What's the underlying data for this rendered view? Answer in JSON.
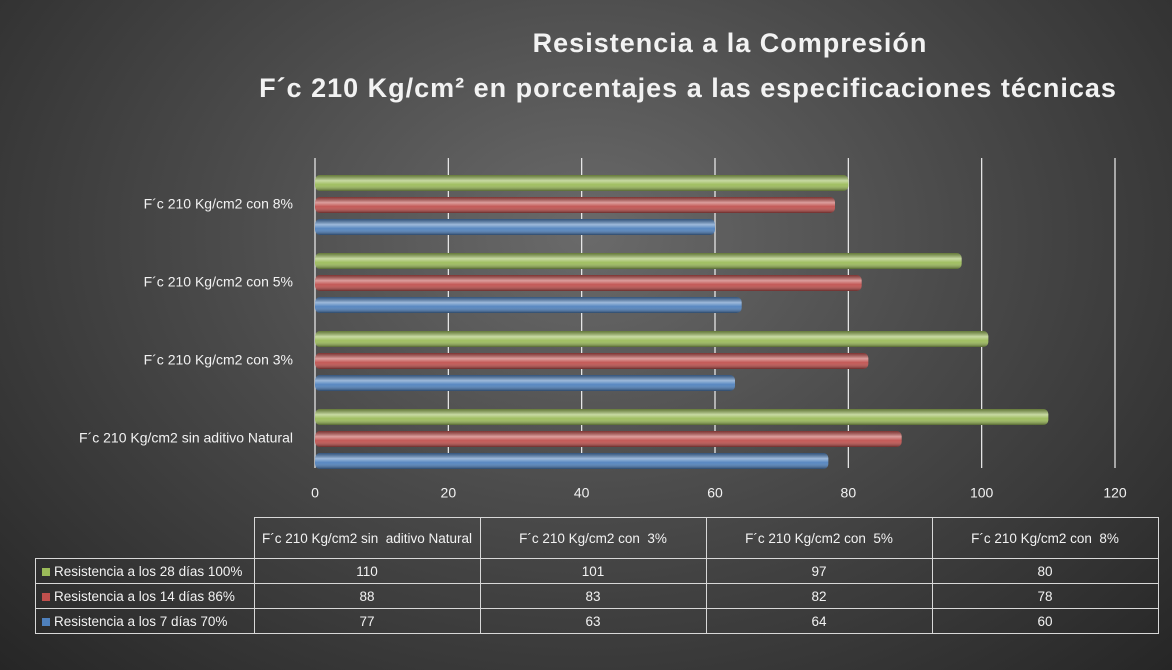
{
  "chart_data": {
    "type": "bar",
    "orientation": "horizontal",
    "title": "Resistencia a la Compresión",
    "subtitle": "F´c 210 Kg/cm² en porcentajes a las especificaciones técnicas",
    "categories": [
      "F´c 210 Kg/cm2 sin  aditivo Natural",
      "F´c 210 Kg/cm2 con  3%",
      "F´c 210 Kg/cm2 con  5%",
      "F´c 210 Kg/cm2 con  8%"
    ],
    "series": [
      {
        "name": "Resistencia a los 28 días 100%",
        "color": "#9bbb59",
        "values": [
          110,
          101,
          97,
          80
        ]
      },
      {
        "name": "Resistencia a los 14 días 86%",
        "color": "#c0504d",
        "values": [
          88,
          83,
          82,
          78
        ]
      },
      {
        "name": "Resistencia a los 7 días 70%",
        "color": "#4f81bd",
        "values": [
          77,
          63,
          64,
          60
        ]
      }
    ],
    "xlim": [
      0,
      120
    ],
    "xticks": [
      0,
      20,
      40,
      60,
      80,
      100,
      120
    ],
    "grid": true,
    "data_table": true
  }
}
